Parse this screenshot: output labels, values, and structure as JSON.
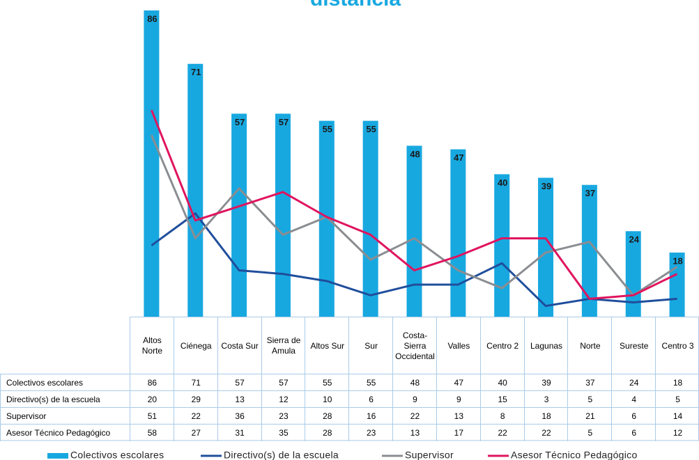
{
  "chart_data": {
    "type": "bar",
    "title": "distancia",
    "categories": [
      "Altos Norte",
      "Ciénega",
      "Costa Sur",
      "Sierra de Amula",
      "Altos Sur",
      "Sur",
      "Costa-Sierra Occidental",
      "Valles",
      "Centro 2",
      "Lagunas",
      "Norte",
      "Sureste",
      "Centro 3"
    ],
    "series": [
      {
        "name": "Colectivos escolares",
        "type": "bar",
        "color": "#18a8e0",
        "values": [
          86,
          71,
          57,
          57,
          55,
          55,
          48,
          47,
          40,
          39,
          37,
          24,
          18
        ]
      },
      {
        "name": "Directivo(s) de la escuela",
        "type": "line",
        "color": "#1f4e9c",
        "values": [
          20,
          29,
          13,
          12,
          10,
          6,
          9,
          9,
          15,
          3,
          5,
          4,
          5
        ]
      },
      {
        "name": "Supervisor",
        "type": "line",
        "color": "#8a8d91",
        "values": [
          51,
          22,
          36,
          23,
          28,
          16,
          22,
          13,
          8,
          18,
          21,
          6,
          14
        ]
      },
      {
        "name": "Asesor Técnico Pedagógico",
        "type": "line",
        "color": "#e0145e",
        "values": [
          58,
          27,
          31,
          35,
          28,
          23,
          13,
          17,
          22,
          22,
          5,
          6,
          12
        ]
      }
    ],
    "ylim": [
      0,
      86
    ],
    "data_table": true,
    "legend": "bottom"
  }
}
